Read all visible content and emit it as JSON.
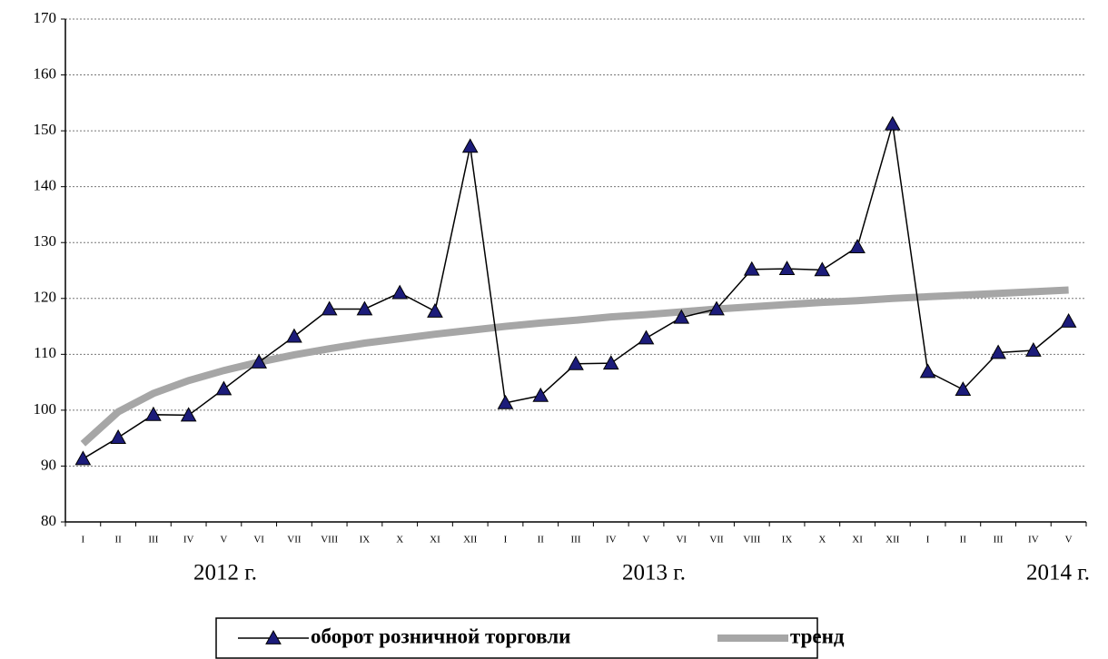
{
  "chart_data": {
    "type": "line",
    "categories": [
      "I",
      "II",
      "III",
      "IV",
      "V",
      "VI",
      "VII",
      "VIII",
      "IX",
      "X",
      "XI",
      "XII",
      "I",
      "II",
      "III",
      "IV",
      "V",
      "VI",
      "VII",
      "VIII",
      "IX",
      "X",
      "XI",
      "XII",
      "I",
      "II",
      "III",
      "IV",
      "V"
    ],
    "annotations": [
      "2012 г.",
      "2013 г.",
      "2014 г."
    ],
    "series": [
      {
        "name": "оборот розничной торговли",
        "color": "#1c1c7a",
        "line_color": "#000000",
        "marker": "triangle",
        "values": [
          91.3,
          95.1,
          99.2,
          99.1,
          103.8,
          108.6,
          113.2,
          118.1,
          118.1,
          121.0,
          117.7,
          147.2,
          101.3,
          102.6,
          108.3,
          108.4,
          112.9,
          116.6,
          118.1,
          125.2,
          125.3,
          125.1,
          129.2,
          151.2,
          106.9,
          103.7,
          110.3,
          110.7,
          115.9
        ]
      },
      {
        "name": "тренд",
        "color": "#a6a6a6",
        "marker": "none",
        "values": [
          94.0,
          99.7,
          103.0,
          105.3,
          107.1,
          108.6,
          109.9,
          111.0,
          112.0,
          112.8,
          113.6,
          114.3,
          115.0,
          115.6,
          116.1,
          116.7,
          117.1,
          117.6,
          118.1,
          118.5,
          118.9,
          119.3,
          119.6,
          120.0,
          120.3,
          120.6,
          120.9,
          121.2,
          121.5
        ]
      }
    ],
    "ylim": [
      80,
      170
    ],
    "yticks": [
      80,
      90,
      100,
      110,
      120,
      130,
      140,
      150,
      160,
      170
    ],
    "grid": true,
    "legend": "bottom"
  }
}
